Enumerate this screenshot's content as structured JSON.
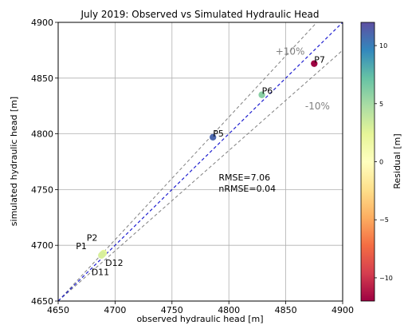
{
  "chart_data": {
    "type": "scatter",
    "title": "July 2019: Observed vs Simulated Hydraulic Head",
    "xlabel": "observed hydraulic head [m]",
    "ylabel": "simulated hydraulic head [m]",
    "xlim": [
      4650,
      4900
    ],
    "ylim": [
      4650,
      4900
    ],
    "xticks": [
      "4650",
      "4700",
      "4750",
      "4800",
      "4850",
      "4900"
    ],
    "yticks": [
      "4650",
      "4700",
      "4750",
      "4800",
      "4850",
      "4900"
    ],
    "grid": true,
    "points": [
      {
        "label": "P1",
        "x": 4688,
        "y": 4691,
        "residual": 3
      },
      {
        "label": "P2",
        "x": 4689,
        "y": 4692,
        "residual": 3
      },
      {
        "label": "D12",
        "x": 4690,
        "y": 4693,
        "residual": 2
      },
      {
        "label": "D11",
        "x": 4689,
        "y": 4692,
        "residual": 3
      },
      {
        "label": "P5",
        "x": 4786,
        "y": 4797,
        "residual": 11
      },
      {
        "label": "P6",
        "x": 4829,
        "y": 4835,
        "residual": 6
      },
      {
        "label": "P7",
        "x": 4875,
        "y": 4863,
        "residual": -12
      }
    ],
    "lines": {
      "one_to_one_color": "#1f1fd0",
      "bounds_color": "#808080",
      "plus_label": "+10%",
      "minus_label": "-10%"
    },
    "stats": {
      "rmse": "RMSE=7.06",
      "nrmse": "nRMSE=0.04"
    },
    "colorbar": {
      "label": "Residual [m]",
      "range": [
        -12,
        12
      ],
      "ticks": [
        "10",
        "5",
        "0",
        "−5",
        "−10"
      ],
      "tick_values": [
        10,
        5,
        0,
        -5,
        -10
      ]
    }
  }
}
